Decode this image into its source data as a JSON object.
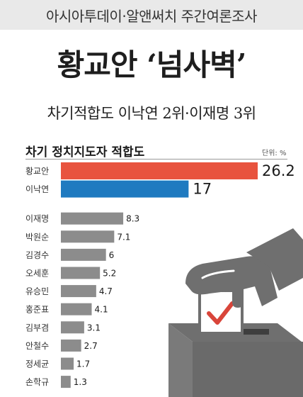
{
  "banner": {
    "text": "아시아투데이·알앤써치 주간여론조사"
  },
  "headline": "황교안 ‘넘사벽’",
  "subheadline": "차기적합도 이낙연 2위·이재명 3위",
  "colors": {
    "first": "#e8533e",
    "second": "#1f7ac0",
    "rest": "#8c8c8c",
    "illustration": "#6f6f6f",
    "check": "#d9453a"
  },
  "illustration": {
    "icon": "ballot-box-with-hand-icon"
  },
  "chart_data": {
    "type": "bar",
    "orientation": "horizontal",
    "title": "차기 정치지도자 적합도",
    "unit": "단위: %",
    "categories": [
      "황교안",
      "이낙연",
      "이재명",
      "박원순",
      "김경수",
      "오세훈",
      "유승민",
      "홍준표",
      "김부겸",
      "안철수",
      "정세균",
      "손학규"
    ],
    "values": [
      26.2,
      17,
      8.3,
      7.1,
      6,
      5.2,
      4.7,
      4.1,
      3.1,
      2.7,
      1.7,
      1.3
    ],
    "value_labels": [
      "26.2",
      "17",
      "8.3",
      "7.1",
      "6",
      "5.2",
      "4.7",
      "4.1",
      "3.1",
      "2.7",
      "1.7",
      "1.3"
    ],
    "xlim": [
      0,
      26.2
    ],
    "grid": false,
    "legend": "none"
  }
}
